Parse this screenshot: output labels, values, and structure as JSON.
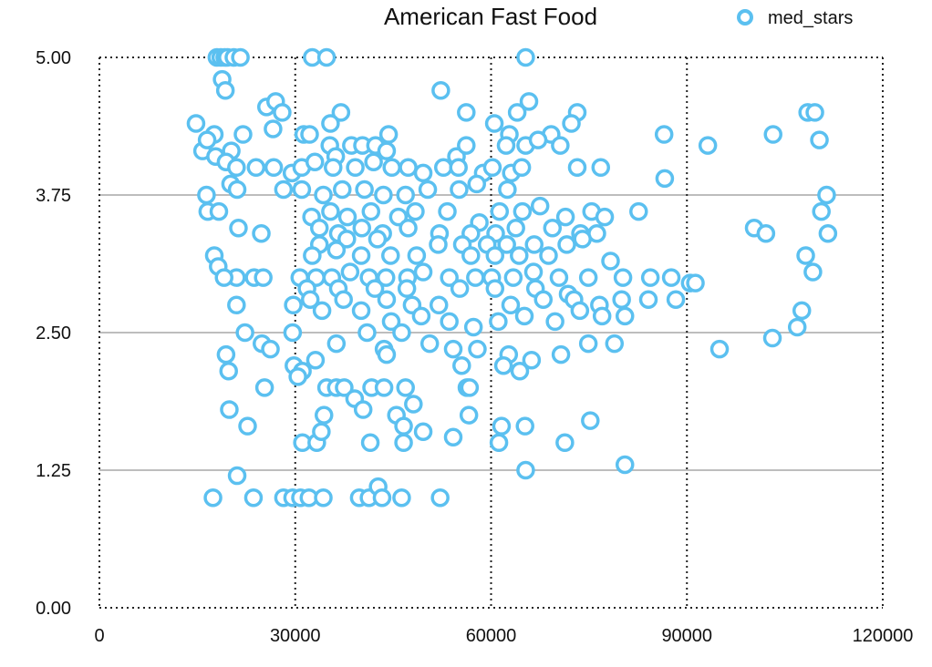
{
  "chart_data": {
    "type": "scatter",
    "title": "American Fast Food",
    "xlabel": "",
    "ylabel": "",
    "xlim": [
      0,
      120000
    ],
    "ylim": [
      0,
      5
    ],
    "x_ticks": [
      "0",
      "30000",
      "60000",
      "90000",
      "120000"
    ],
    "y_ticks": [
      "0.00",
      "1.25",
      "2.50",
      "3.75",
      "5.00"
    ],
    "grid": {
      "horizontal": "solid",
      "vertical": "dotted"
    },
    "legend": "top-right",
    "series": [
      {
        "name": "med_stars",
        "color": "#5bc0f0",
        "points": [
          [
            18000,
            5.0
          ],
          [
            18600,
            5.0
          ],
          [
            19200,
            5.0
          ],
          [
            19600,
            5.0
          ],
          [
            20600,
            5.0
          ],
          [
            21600,
            5.0
          ],
          [
            32600,
            5.0
          ],
          [
            34800,
            5.0
          ],
          [
            65300,
            5.0
          ],
          [
            18800,
            4.8
          ],
          [
            19300,
            4.7
          ],
          [
            52300,
            4.7
          ],
          [
            25600,
            4.55
          ],
          [
            27000,
            4.6
          ],
          [
            28000,
            4.5
          ],
          [
            37000,
            4.5
          ],
          [
            56200,
            4.5
          ],
          [
            64000,
            4.5
          ],
          [
            65800,
            4.6
          ],
          [
            73200,
            4.5
          ],
          [
            108500,
            4.5
          ],
          [
            109600,
            4.5
          ],
          [
            14800,
            4.4
          ],
          [
            17600,
            4.3
          ],
          [
            22000,
            4.3
          ],
          [
            26600,
            4.35
          ],
          [
            31300,
            4.3
          ],
          [
            32200,
            4.3
          ],
          [
            35400,
            4.4
          ],
          [
            44300,
            4.3
          ],
          [
            60500,
            4.4
          ],
          [
            62800,
            4.3
          ],
          [
            69200,
            4.3
          ],
          [
            72300,
            4.4
          ],
          [
            86500,
            4.3
          ],
          [
            103200,
            4.3
          ],
          [
            110300,
            4.25
          ],
          [
            15800,
            4.15
          ],
          [
            16500,
            4.25
          ],
          [
            20200,
            4.15
          ],
          [
            35300,
            4.2
          ],
          [
            36200,
            4.1
          ],
          [
            38600,
            4.2
          ],
          [
            40300,
            4.2
          ],
          [
            42300,
            4.2
          ],
          [
            44000,
            4.15
          ],
          [
            54700,
            4.1
          ],
          [
            56200,
            4.2
          ],
          [
            62300,
            4.2
          ],
          [
            65300,
            4.2
          ],
          [
            67200,
            4.25
          ],
          [
            70600,
            4.2
          ],
          [
            93200,
            4.2
          ],
          [
            17800,
            4.1
          ],
          [
            19400,
            4.05
          ],
          [
            21000,
            4.0
          ],
          [
            24000,
            4.0
          ],
          [
            26700,
            4.0
          ],
          [
            29500,
            3.95
          ],
          [
            31000,
            4.0
          ],
          [
            33000,
            4.05
          ],
          [
            35800,
            4.0
          ],
          [
            39200,
            4.0
          ],
          [
            42000,
            4.05
          ],
          [
            44800,
            4.0
          ],
          [
            47300,
            4.0
          ],
          [
            49600,
            3.95
          ],
          [
            52700,
            4.0
          ],
          [
            55000,
            4.0
          ],
          [
            58800,
            3.95
          ],
          [
            60200,
            4.0
          ],
          [
            63100,
            3.95
          ],
          [
            64700,
            4.0
          ],
          [
            73200,
            4.0
          ],
          [
            76800,
            4.0
          ],
          [
            16400,
            3.75
          ],
          [
            20100,
            3.85
          ],
          [
            21100,
            3.8
          ],
          [
            28200,
            3.8
          ],
          [
            31000,
            3.8
          ],
          [
            34300,
            3.75
          ],
          [
            37200,
            3.8
          ],
          [
            40600,
            3.8
          ],
          [
            43500,
            3.75
          ],
          [
            46900,
            3.75
          ],
          [
            50300,
            3.8
          ],
          [
            55100,
            3.8
          ],
          [
            57800,
            3.85
          ],
          [
            62500,
            3.8
          ],
          [
            86600,
            3.9
          ],
          [
            111400,
            3.75
          ],
          [
            16600,
            3.6
          ],
          [
            18300,
            3.6
          ],
          [
            32500,
            3.55
          ],
          [
            35400,
            3.6
          ],
          [
            38000,
            3.55
          ],
          [
            41600,
            3.6
          ],
          [
            45800,
            3.55
          ],
          [
            48400,
            3.6
          ],
          [
            53300,
            3.6
          ],
          [
            58200,
            3.5
          ],
          [
            61300,
            3.6
          ],
          [
            64800,
            3.6
          ],
          [
            67500,
            3.65
          ],
          [
            71400,
            3.55
          ],
          [
            75400,
            3.6
          ],
          [
            77400,
            3.55
          ],
          [
            82600,
            3.6
          ],
          [
            110600,
            3.6
          ],
          [
            21300,
            3.45
          ],
          [
            24800,
            3.4
          ],
          [
            33700,
            3.45
          ],
          [
            36600,
            3.4
          ],
          [
            40200,
            3.45
          ],
          [
            43400,
            3.4
          ],
          [
            47300,
            3.45
          ],
          [
            52100,
            3.4
          ],
          [
            56900,
            3.4
          ],
          [
            60700,
            3.4
          ],
          [
            63800,
            3.45
          ],
          [
            69400,
            3.45
          ],
          [
            73700,
            3.4
          ],
          [
            76200,
            3.4
          ],
          [
            100300,
            3.45
          ],
          [
            102100,
            3.4
          ],
          [
            111600,
            3.4
          ],
          [
            33700,
            3.3
          ],
          [
            37900,
            3.35
          ],
          [
            42600,
            3.35
          ],
          [
            51900,
            3.3
          ],
          [
            55600,
            3.3
          ],
          [
            59400,
            3.3
          ],
          [
            62400,
            3.3
          ],
          [
            66600,
            3.3
          ],
          [
            71600,
            3.3
          ],
          [
            74000,
            3.35
          ],
          [
            17600,
            3.2
          ],
          [
            32600,
            3.2
          ],
          [
            36300,
            3.25
          ],
          [
            40100,
            3.2
          ],
          [
            44600,
            3.2
          ],
          [
            48600,
            3.2
          ],
          [
            56900,
            3.2
          ],
          [
            60600,
            3.2
          ],
          [
            64300,
            3.2
          ],
          [
            68800,
            3.2
          ],
          [
            78300,
            3.15
          ],
          [
            108200,
            3.2
          ],
          [
            18200,
            3.1
          ],
          [
            21000,
            3.0
          ],
          [
            23700,
            3.0
          ],
          [
            25100,
            3.0
          ],
          [
            30700,
            3.0
          ],
          [
            33200,
            3.0
          ],
          [
            35600,
            3.0
          ],
          [
            38400,
            3.05
          ],
          [
            41300,
            3.0
          ],
          [
            43900,
            3.0
          ],
          [
            47200,
            3.0
          ],
          [
            49600,
            3.05
          ],
          [
            53600,
            3.0
          ],
          [
            57600,
            3.0
          ],
          [
            60100,
            3.0
          ],
          [
            63400,
            3.0
          ],
          [
            66500,
            3.05
          ],
          [
            70400,
            3.0
          ],
          [
            74900,
            3.0
          ],
          [
            80200,
            3.0
          ],
          [
            84400,
            3.0
          ],
          [
            87600,
            3.0
          ],
          [
            90500,
            2.95
          ],
          [
            91300,
            2.95
          ],
          [
            109300,
            3.05
          ],
          [
            19100,
            3.0
          ],
          [
            31800,
            2.9
          ],
          [
            36600,
            2.9
          ],
          [
            42200,
            2.9
          ],
          [
            47100,
            2.9
          ],
          [
            55200,
            2.9
          ],
          [
            60600,
            2.9
          ],
          [
            66800,
            2.9
          ],
          [
            71800,
            2.85
          ],
          [
            32300,
            2.8
          ],
          [
            37400,
            2.8
          ],
          [
            44000,
            2.8
          ],
          [
            47900,
            2.75
          ],
          [
            52000,
            2.75
          ],
          [
            63000,
            2.75
          ],
          [
            68000,
            2.8
          ],
          [
            72700,
            2.8
          ],
          [
            76600,
            2.75
          ],
          [
            80000,
            2.8
          ],
          [
            84100,
            2.8
          ],
          [
            88300,
            2.8
          ],
          [
            107600,
            2.7
          ],
          [
            21000,
            2.75
          ],
          [
            29700,
            2.75
          ],
          [
            34100,
            2.7
          ],
          [
            40100,
            2.7
          ],
          [
            44700,
            2.6
          ],
          [
            49300,
            2.65
          ],
          [
            53600,
            2.6
          ],
          [
            57300,
            2.55
          ],
          [
            61100,
            2.6
          ],
          [
            65100,
            2.65
          ],
          [
            69800,
            2.6
          ],
          [
            73600,
            2.7
          ],
          [
            77000,
            2.65
          ],
          [
            80500,
            2.65
          ],
          [
            106900,
            2.55
          ],
          [
            22300,
            2.5
          ],
          [
            24900,
            2.4
          ],
          [
            26200,
            2.35
          ],
          [
            29600,
            2.5
          ],
          [
            36300,
            2.4
          ],
          [
            41000,
            2.5
          ],
          [
            43600,
            2.35
          ],
          [
            46300,
            2.5
          ],
          [
            50600,
            2.4
          ],
          [
            54200,
            2.35
          ],
          [
            57900,
            2.35
          ],
          [
            62700,
            2.3
          ],
          [
            66200,
            2.25
          ],
          [
            70700,
            2.3
          ],
          [
            74900,
            2.4
          ],
          [
            78900,
            2.4
          ],
          [
            95000,
            2.35
          ],
          [
            103100,
            2.45
          ],
          [
            19400,
            2.3
          ],
          [
            19800,
            2.15
          ],
          [
            29800,
            2.2
          ],
          [
            31100,
            2.15
          ],
          [
            33100,
            2.25
          ],
          [
            44000,
            2.3
          ],
          [
            55500,
            2.2
          ],
          [
            61900,
            2.2
          ],
          [
            64400,
            2.15
          ],
          [
            25300,
            2.0
          ],
          [
            30400,
            2.1
          ],
          [
            34800,
            2.0
          ],
          [
            36300,
            2.0
          ],
          [
            37500,
            2.0
          ],
          [
            39100,
            1.9
          ],
          [
            40400,
            1.8
          ],
          [
            41700,
            2.0
          ],
          [
            43600,
            2.0
          ],
          [
            46900,
            2.0
          ],
          [
            48100,
            1.85
          ],
          [
            56300,
            2.0
          ],
          [
            56700,
            2.0
          ],
          [
            19900,
            1.8
          ],
          [
            34400,
            1.75
          ],
          [
            45500,
            1.75
          ],
          [
            46600,
            1.65
          ],
          [
            49600,
            1.6
          ],
          [
            56600,
            1.75
          ],
          [
            61600,
            1.65
          ],
          [
            65200,
            1.65
          ],
          [
            75200,
            1.7
          ],
          [
            22700,
            1.65
          ],
          [
            31100,
            1.5
          ],
          [
            33300,
            1.5
          ],
          [
            34000,
            1.6
          ],
          [
            41500,
            1.5
          ],
          [
            46600,
            1.5
          ],
          [
            54200,
            1.55
          ],
          [
            61200,
            1.5
          ],
          [
            71300,
            1.5
          ],
          [
            80500,
            1.3
          ],
          [
            21100,
            1.2
          ],
          [
            65300,
            1.25
          ],
          [
            17400,
            1.0
          ],
          [
            23600,
            1.0
          ],
          [
            28200,
            1.0
          ],
          [
            29600,
            1.0
          ],
          [
            30800,
            1.0
          ],
          [
            32100,
            1.0
          ],
          [
            34300,
            1.0
          ],
          [
            39800,
            1.0
          ],
          [
            41300,
            1.0
          ],
          [
            42700,
            1.1
          ],
          [
            43300,
            1.0
          ],
          [
            46300,
            1.0
          ],
          [
            52200,
            1.0
          ]
        ]
      }
    ]
  }
}
